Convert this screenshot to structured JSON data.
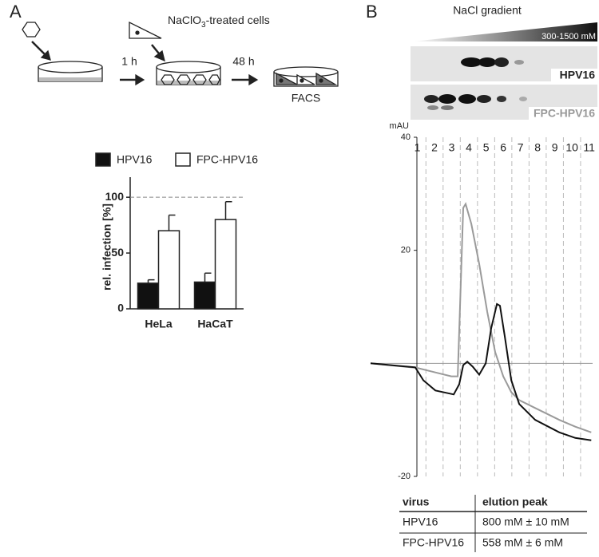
{
  "panels": [
    "A",
    "B"
  ],
  "schematic": {
    "treated_label": [
      "NaClO",
      "3",
      "-treated cells"
    ],
    "step1": "1 h",
    "step2": "48 h",
    "readout": "FACS"
  },
  "gradient": {
    "title": "NaCl gradient",
    "range": "300-1500 mM"
  },
  "chart_data": [
    {
      "type": "bar",
      "ylabel": "rel. infection [%]",
      "categories": [
        "HeLa",
        "HaCaT"
      ],
      "series": [
        {
          "name": "HPV16",
          "color": "#111111",
          "values": [
            23,
            24
          ],
          "errors": [
            3,
            8
          ]
        },
        {
          "name": "FPC-HPV16",
          "color": "#ffffff",
          "values": [
            70,
            80
          ],
          "errors": [
            14,
            16
          ]
        }
      ],
      "ylim": [
        0,
        118
      ],
      "yticks": [
        0,
        50,
        100
      ],
      "reference_line": 100,
      "legend": "top"
    },
    {
      "type": "line",
      "ylabel": "mAU",
      "xlim": [
        -1.72,
        11.2
      ],
      "xticks": [
        1,
        2,
        3,
        4,
        5,
        6,
        7,
        8,
        9,
        10,
        11
      ],
      "ylim": [
        -20,
        40
      ],
      "yticks": [
        -20,
        20,
        40
      ],
      "zero_line": true,
      "series": [
        {
          "name": "HPV16",
          "color": "#111111",
          "x": [
            -1.72,
            0.88,
            1.35,
            2.05,
            3.12,
            3.44,
            3.67,
            3.91,
            4.23,
            4.6,
            4.98,
            5.3,
            5.63,
            5.81,
            6.09,
            6.47,
            6.93,
            7.86,
            9.26,
            10.19,
            11.12
          ],
          "values": [
            0,
            -0.7,
            -3,
            -4.8,
            -5.5,
            -3.7,
            -0.3,
            0.3,
            -0.6,
            -2,
            0,
            6.2,
            10.5,
            10.2,
            4.8,
            -3,
            -7.2,
            -10,
            -12.2,
            -13.2,
            -13.6
          ]
        },
        {
          "name": "FPC-HPV16",
          "color": "#9a9a9a",
          "x": [
            -1.72,
            0.98,
            2.05,
            2.98,
            3.35,
            3.49,
            3.67,
            3.81,
            4.14,
            4.6,
            5.07,
            5.53,
            6.0,
            6.47,
            6.93,
            7.86,
            9.26,
            10.19,
            11.12
          ],
          "values": [
            0,
            -0.8,
            -1.6,
            -2.3,
            -2.3,
            10.5,
            27.5,
            28.2,
            24.7,
            17.6,
            9.1,
            2,
            -2.3,
            -5.1,
            -6.5,
            -7.9,
            -10,
            -11.2,
            -12.2
          ]
        }
      ]
    }
  ],
  "table": {
    "header": [
      "virus",
      "elution peak"
    ],
    "rows": [
      [
        "HPV16",
        "800 mM ± 10 mM"
      ],
      [
        "FPC-HPV16",
        "558 mM ± 6 mM"
      ]
    ]
  }
}
